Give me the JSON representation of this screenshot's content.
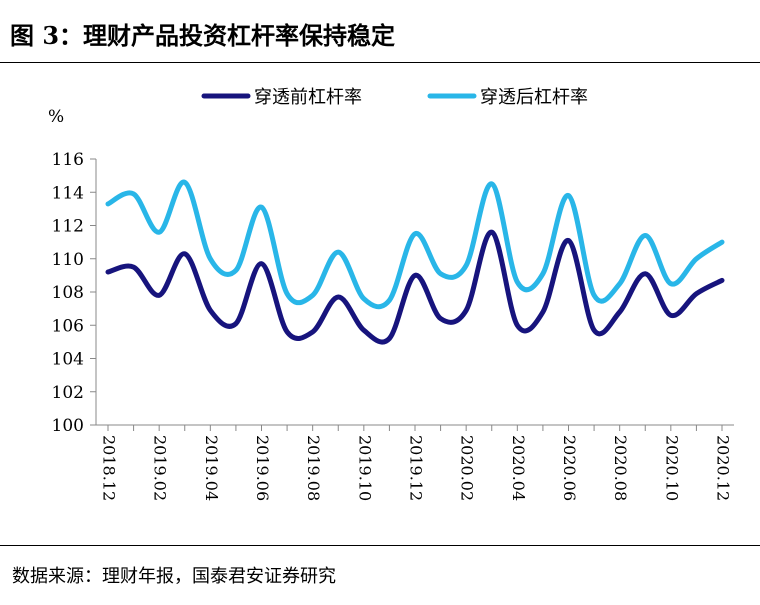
{
  "title": "图 3：理财产品投资杠杆率保持稳定",
  "source": "数据来源：理财年报，国泰君安证券研究",
  "chart_data": {
    "type": "line",
    "ylabel": "%",
    "ylim": [
      100,
      116
    ],
    "yticks": [
      "100",
      "102",
      "104",
      "106",
      "108",
      "110",
      "112",
      "114",
      "116"
    ],
    "x": [
      "2018.12",
      "2019.01",
      "2019.02",
      "2019.03",
      "2019.04",
      "2019.05",
      "2019.06",
      "2019.07",
      "2019.08",
      "2019.09",
      "2019.10",
      "2019.11",
      "2019.12",
      "2020.01",
      "2020.02",
      "2020.03",
      "2020.04",
      "2020.05",
      "2020.06",
      "2020.07",
      "2020.08",
      "2020.09",
      "2020.10",
      "2020.11",
      "2020.12"
    ],
    "xtick_labels": [
      "2018.12",
      "2019.02",
      "2019.04",
      "2019.06",
      "2019.08",
      "2019.10",
      "2019.12",
      "2020.02",
      "2020.04",
      "2020.06",
      "2020.08",
      "2020.10",
      "2020.12"
    ],
    "legend_position": "top",
    "series": [
      {
        "name": "穿透前杠杆率",
        "color": "#17147d",
        "values": [
          109.2,
          109.5,
          107.8,
          110.3,
          106.9,
          106.1,
          109.7,
          105.6,
          105.6,
          107.7,
          105.7,
          105.2,
          109.0,
          106.4,
          106.9,
          111.6,
          106.0,
          106.8,
          111.1,
          105.7,
          106.8,
          109.1,
          106.6,
          107.9,
          108.7
        ]
      },
      {
        "name": "穿透后杠杆率",
        "color": "#29b6e8",
        "values": [
          113.3,
          113.9,
          111.6,
          114.6,
          110.0,
          109.3,
          113.1,
          107.9,
          107.8,
          110.4,
          107.6,
          107.5,
          111.5,
          109.1,
          109.6,
          114.5,
          108.6,
          109.1,
          113.8,
          107.8,
          108.5,
          111.4,
          108.5,
          110.0,
          111.0
        ]
      }
    ]
  }
}
